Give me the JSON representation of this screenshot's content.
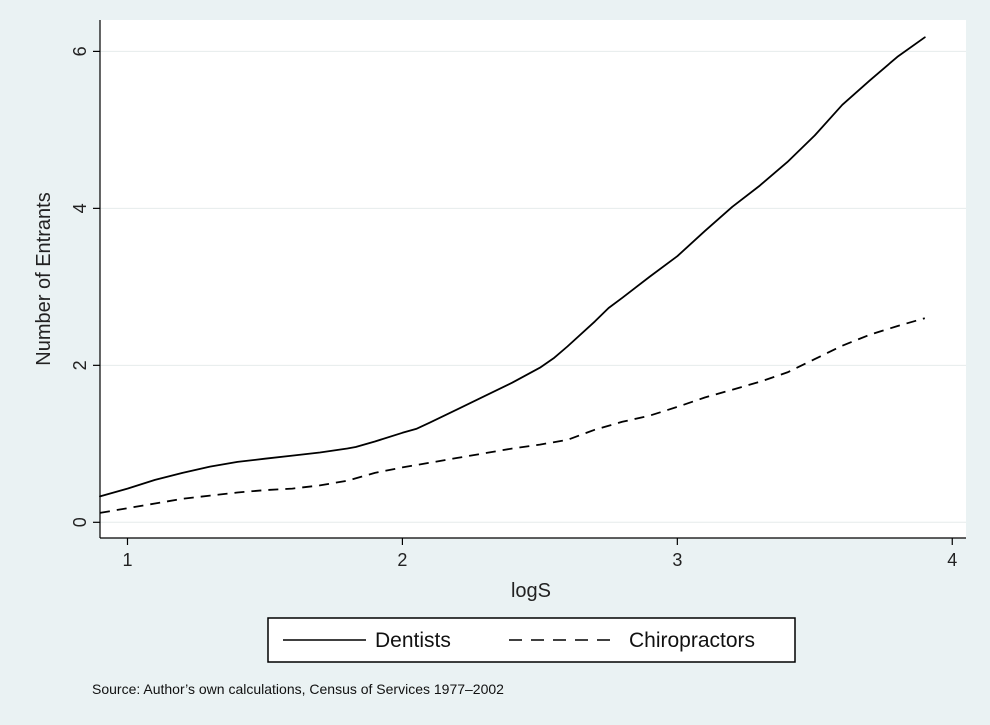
{
  "chart_data": {
    "type": "line",
    "title": "",
    "xlabel": "logS",
    "ylabel": "Number of Entrants",
    "xlim": [
      0.9,
      4.05
    ],
    "ylim": [
      -0.2,
      6.4
    ],
    "xticks": [
      1,
      2,
      3,
      4
    ],
    "yticks": [
      0,
      2,
      4,
      6
    ],
    "grid": "horizontal",
    "legend_position": "bottom",
    "series": [
      {
        "name": "Dentists",
        "style": "solid",
        "color": "#000000",
        "points": [
          [
            0.9,
            0.33
          ],
          [
            1.0,
            0.43
          ],
          [
            1.1,
            0.54
          ],
          [
            1.2,
            0.63
          ],
          [
            1.3,
            0.71
          ],
          [
            1.4,
            0.77
          ],
          [
            1.5,
            0.81
          ],
          [
            1.6,
            0.85
          ],
          [
            1.7,
            0.89
          ],
          [
            1.8,
            0.94
          ],
          [
            1.83,
            0.96
          ],
          [
            1.9,
            1.03
          ],
          [
            2.0,
            1.14
          ],
          [
            2.05,
            1.19
          ],
          [
            2.1,
            1.27
          ],
          [
            2.2,
            1.44
          ],
          [
            2.3,
            1.61
          ],
          [
            2.4,
            1.78
          ],
          [
            2.5,
            1.97
          ],
          [
            2.55,
            2.09
          ],
          [
            2.6,
            2.24
          ],
          [
            2.7,
            2.56
          ],
          [
            2.75,
            2.73
          ],
          [
            2.8,
            2.86
          ],
          [
            2.9,
            3.13
          ],
          [
            3.0,
            3.39
          ],
          [
            3.1,
            3.71
          ],
          [
            3.2,
            4.02
          ],
          [
            3.3,
            4.29
          ],
          [
            3.4,
            4.59
          ],
          [
            3.5,
            4.93
          ],
          [
            3.6,
            5.32
          ],
          [
            3.7,
            5.63
          ],
          [
            3.8,
            5.93
          ],
          [
            3.9,
            6.18
          ]
        ]
      },
      {
        "name": "Chiropractors",
        "style": "dashed",
        "color": "#000000",
        "points": [
          [
            0.9,
            0.12
          ],
          [
            1.0,
            0.18
          ],
          [
            1.1,
            0.24
          ],
          [
            1.2,
            0.3
          ],
          [
            1.3,
            0.34
          ],
          [
            1.4,
            0.38
          ],
          [
            1.5,
            0.41
          ],
          [
            1.6,
            0.43
          ],
          [
            1.7,
            0.47
          ],
          [
            1.8,
            0.53
          ],
          [
            1.85,
            0.58
          ],
          [
            1.9,
            0.63
          ],
          [
            2.0,
            0.7
          ],
          [
            2.1,
            0.76
          ],
          [
            2.2,
            0.82
          ],
          [
            2.3,
            0.88
          ],
          [
            2.4,
            0.94
          ],
          [
            2.5,
            0.99
          ],
          [
            2.6,
            1.05
          ],
          [
            2.7,
            1.18
          ],
          [
            2.8,
            1.28
          ],
          [
            2.9,
            1.36
          ],
          [
            3.0,
            1.47
          ],
          [
            3.1,
            1.59
          ],
          [
            3.2,
            1.69
          ],
          [
            3.3,
            1.79
          ],
          [
            3.4,
            1.91
          ],
          [
            3.5,
            2.08
          ],
          [
            3.6,
            2.25
          ],
          [
            3.7,
            2.39
          ],
          [
            3.8,
            2.5
          ],
          [
            3.9,
            2.6
          ]
        ]
      }
    ]
  },
  "note": "Source: Author’s own calculations, Census of Services 1977–2002",
  "colors": {
    "background": "#eaf2f3",
    "plot_background": "#ffffff",
    "grid": "#e6ecec",
    "line": "#000000"
  }
}
